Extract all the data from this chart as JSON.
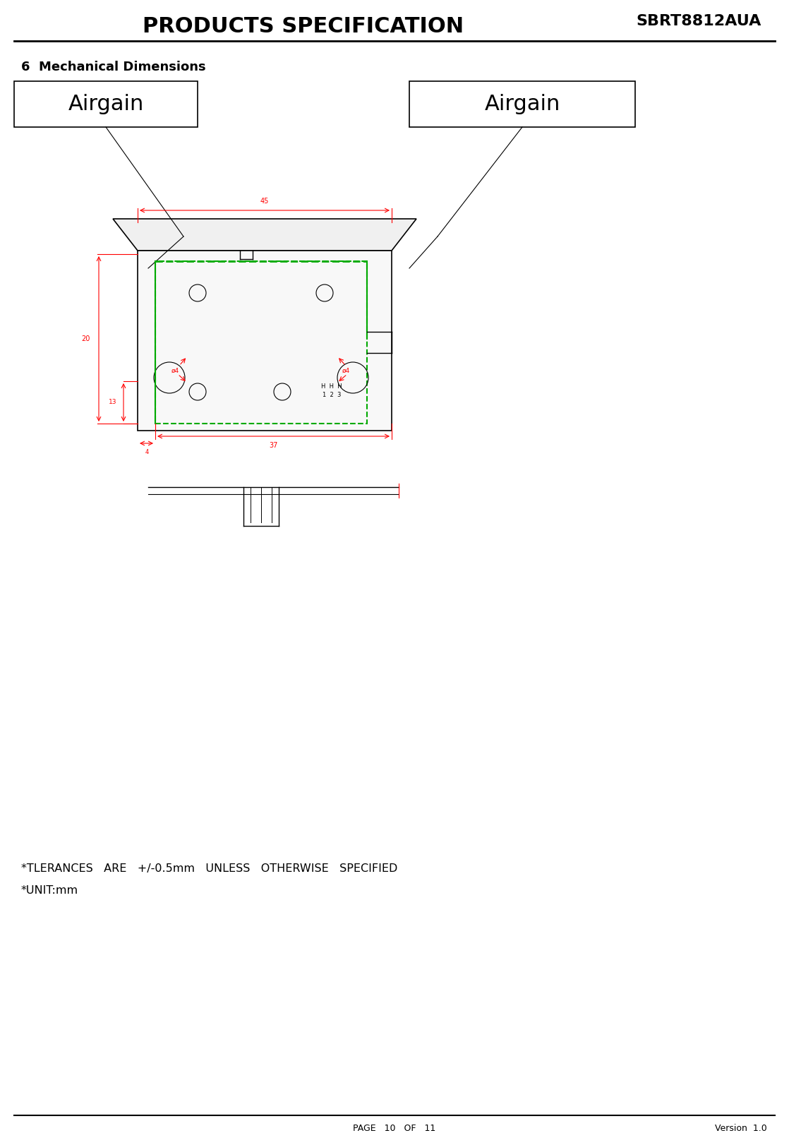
{
  "title": "PRODUCTS SPECIFICATION",
  "model": "SBRT8812AUA",
  "section": "6  Mechanical Dimensions",
  "label1": "Airgain",
  "label2": "Airgain",
  "footer_page": "PAGE   10   OF   11",
  "footer_version": "Version  1.0",
  "notes": [
    "*TLERANCES   ARE   +/-0.5mm   UNLESS   OTHERWISE   SPECIFIED",
    "*UNIT:mm"
  ],
  "bg_color": "#ffffff",
  "dim_color": "#ff0000",
  "green_color": "#00aa00",
  "black_color": "#000000",
  "gray_color": "#888888"
}
